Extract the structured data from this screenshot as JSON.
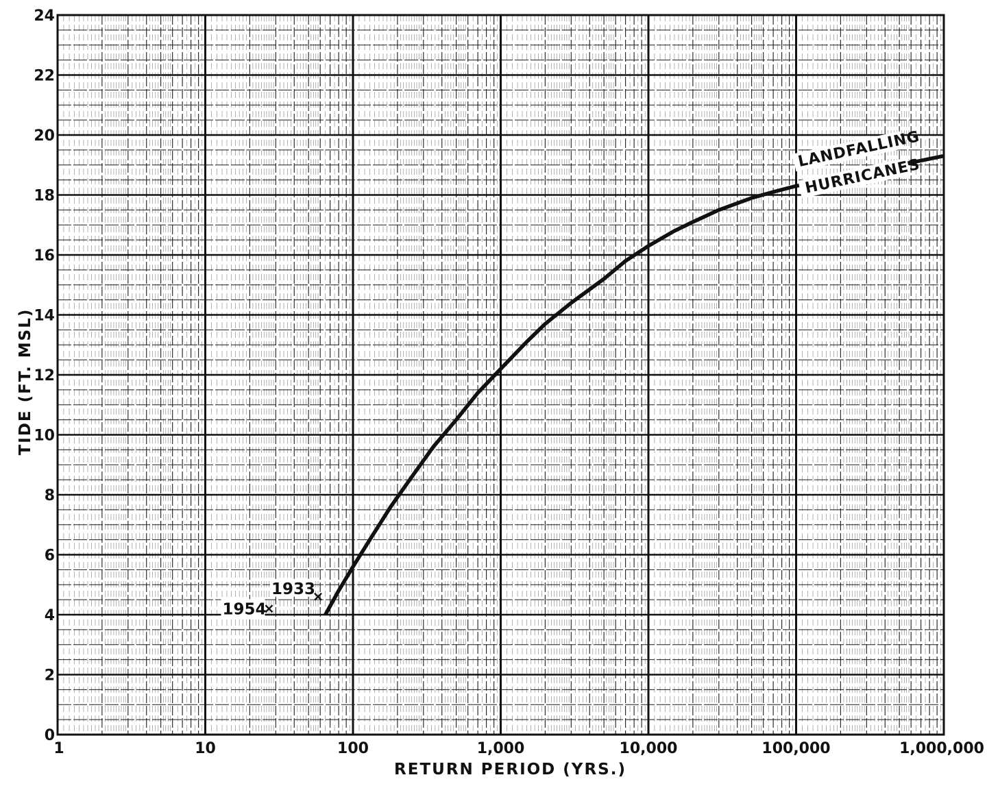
{
  "chart_data": {
    "type": "line",
    "title": "",
    "xlabel": "RETURN PERIOD (YRS.)",
    "ylabel": "TIDE (FT. MSL)",
    "x_scale": "log",
    "xlim": [
      1,
      1000000
    ],
    "ylim": [
      0,
      24
    ],
    "x_ticks": [
      1,
      10,
      100,
      1000,
      10000,
      100000,
      1000000
    ],
    "x_tick_labels": [
      "1",
      "10",
      "100",
      "1,000",
      "10,000",
      "100,000",
      "1,000,000"
    ],
    "y_ticks": [
      0,
      2,
      4,
      6,
      8,
      10,
      12,
      14,
      16,
      18,
      20,
      22,
      24
    ],
    "y_tick_labels": [
      "0",
      "2",
      "4",
      "6",
      "8",
      "10",
      "12",
      "14",
      "16",
      "18",
      "20",
      "22",
      "24"
    ],
    "grid": true,
    "series": [
      {
        "name": "LANDFALLING HURRICANES",
        "label_lines": [
          "LANDFALLING",
          "HURRICANES"
        ],
        "x": [
          65,
          80,
          100,
          130,
          180,
          250,
          350,
          500,
          700,
          1000,
          1500,
          2000,
          3000,
          5000,
          7000,
          10000,
          15000,
          20000,
          30000,
          50000,
          70000,
          100000,
          200000,
          300000,
          500000,
          1000000
        ],
        "y": [
          4.0,
          4.8,
          5.6,
          6.5,
          7.6,
          8.6,
          9.6,
          10.5,
          11.4,
          12.2,
          13.1,
          13.7,
          14.4,
          15.2,
          15.8,
          16.3,
          16.8,
          17.1,
          17.5,
          17.9,
          18.1,
          18.3,
          18.6,
          18.8,
          19.0,
          19.3
        ]
      }
    ],
    "points": [
      {
        "label": "1933",
        "x": 58,
        "y": 4.6,
        "marker": "x"
      },
      {
        "label": "1954",
        "x": 27,
        "y": 4.2,
        "marker": "x"
      }
    ],
    "colors": {
      "ink": "#111111",
      "grid_major": "#1a1a1a",
      "grid_minor": "#555555",
      "background": "#ffffff"
    }
  }
}
